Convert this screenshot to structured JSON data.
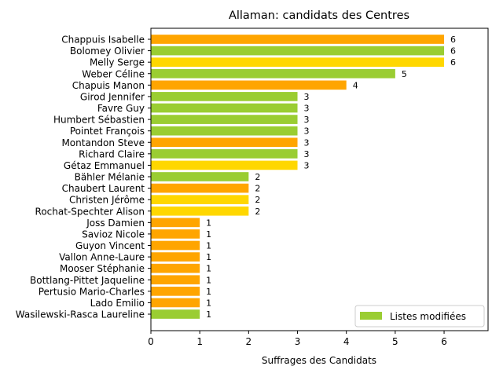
{
  "chart_data": {
    "type": "bar",
    "orientation": "horizontal",
    "title": "Allaman: candidats des Centres",
    "xlabel": "Suffrages des Candidats",
    "ylabel": "",
    "xlim": [
      0,
      6.9
    ],
    "xticks": [
      0,
      1,
      2,
      3,
      4,
      5,
      6
    ],
    "grid": false,
    "colors": {
      "orange": "#FFA500",
      "green": "#9ACD32",
      "gold": "#FFD700"
    },
    "legend": {
      "position": "lower-right",
      "entries": [
        {
          "label": "Listes modifiées",
          "color": "#9ACD32"
        }
      ]
    },
    "bars": [
      {
        "name": "Chappuis Isabelle",
        "value": 6,
        "color": "#FFA500"
      },
      {
        "name": "Bolomey Olivier",
        "value": 6,
        "color": "#9ACD32"
      },
      {
        "name": "Melly Serge",
        "value": 6,
        "color": "#FFD700"
      },
      {
        "name": "Weber Céline",
        "value": 5,
        "color": "#9ACD32"
      },
      {
        "name": "Chapuis Manon",
        "value": 4,
        "color": "#FFA500"
      },
      {
        "name": "Girod Jennifer",
        "value": 3,
        "color": "#9ACD32"
      },
      {
        "name": "Favre Guy",
        "value": 3,
        "color": "#9ACD32"
      },
      {
        "name": "Humbert Sébastien",
        "value": 3,
        "color": "#9ACD32"
      },
      {
        "name": "Pointet François",
        "value": 3,
        "color": "#9ACD32"
      },
      {
        "name": "Montandon Steve",
        "value": 3,
        "color": "#FFA500"
      },
      {
        "name": "Richard Claire",
        "value": 3,
        "color": "#9ACD32"
      },
      {
        "name": "Gétaz Emmanuel",
        "value": 3,
        "color": "#FFD700"
      },
      {
        "name": "Bähler Mélanie",
        "value": 2,
        "color": "#9ACD32"
      },
      {
        "name": "Chaubert Laurent",
        "value": 2,
        "color": "#FFA500"
      },
      {
        "name": "Christen Jérôme",
        "value": 2,
        "color": "#FFD700"
      },
      {
        "name": "Rochat-Spechter Alison",
        "value": 2,
        "color": "#FFD700"
      },
      {
        "name": "Joss Damien",
        "value": 1,
        "color": "#FFA500"
      },
      {
        "name": "Savioz Nicole",
        "value": 1,
        "color": "#FFA500"
      },
      {
        "name": "Guyon Vincent",
        "value": 1,
        "color": "#FFA500"
      },
      {
        "name": "Vallon Anne-Laure",
        "value": 1,
        "color": "#FFA500"
      },
      {
        "name": "Mooser Stéphanie",
        "value": 1,
        "color": "#FFA500"
      },
      {
        "name": "Bottlang-Pittet Jaqueline",
        "value": 1,
        "color": "#FFA500"
      },
      {
        "name": "Pertusio Mario-Charles",
        "value": 1,
        "color": "#FFA500"
      },
      {
        "name": "Lado Emilio",
        "value": 1,
        "color": "#FFA500"
      },
      {
        "name": "Wasilewski-Rasca Laureline",
        "value": 1,
        "color": "#9ACD32"
      }
    ]
  }
}
